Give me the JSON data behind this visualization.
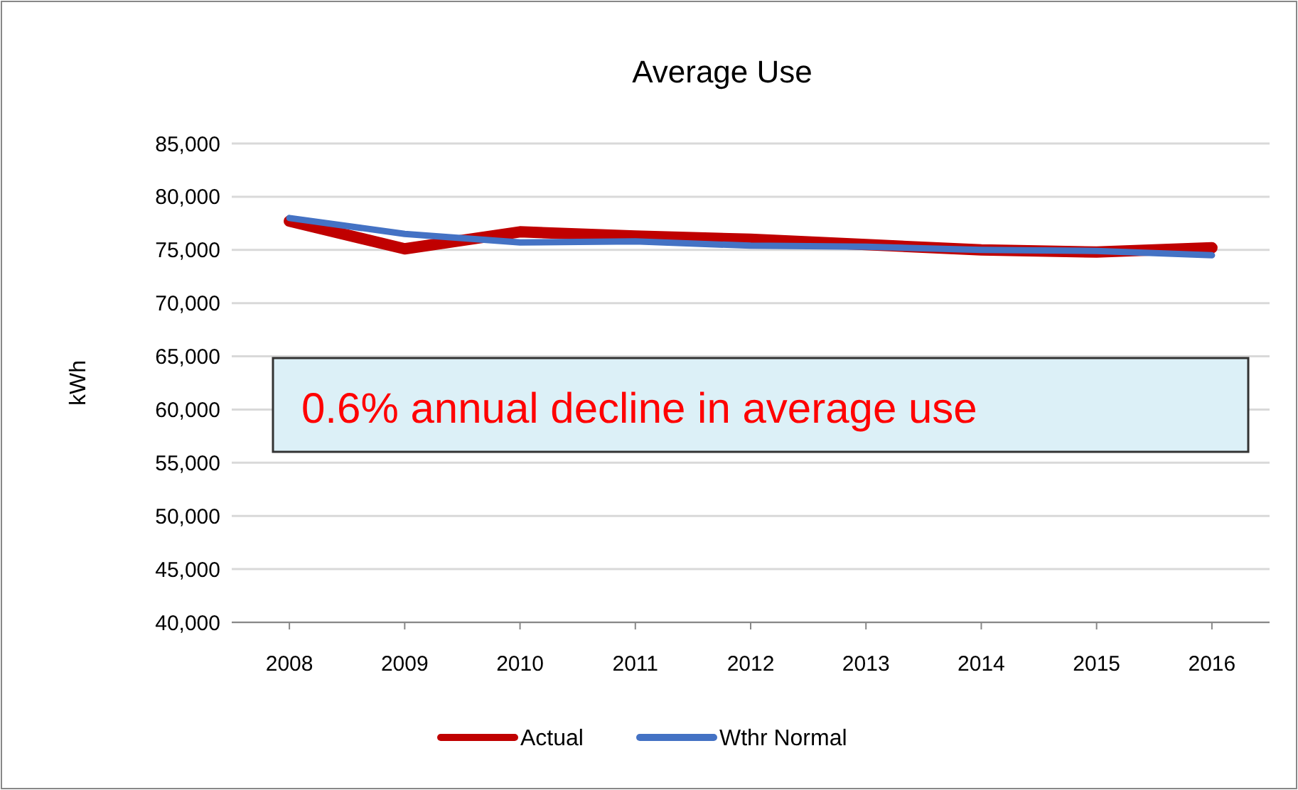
{
  "chart_data": {
    "type": "line",
    "title": "Average Use",
    "ylabel": "kWh",
    "categories": [
      "2008",
      "2009",
      "2010",
      "2011",
      "2012",
      "2013",
      "2014",
      "2015",
      "2016"
    ],
    "series": [
      {
        "name": "Actual",
        "color": "#c00000",
        "values": [
          77700,
          75100,
          76700,
          76300,
          76000,
          75500,
          75000,
          74800,
          75200
        ]
      },
      {
        "name": "Wthr Normal",
        "color": "#4472c4",
        "values": [
          78000,
          76500,
          75700,
          75800,
          75400,
          75300,
          75000,
          74900,
          74500
        ]
      }
    ],
    "ylim": [
      40000,
      85000
    ],
    "yticks": [
      {
        "value": 40000,
        "label": "40,000"
      },
      {
        "value": 45000,
        "label": "45,000"
      },
      {
        "value": 50000,
        "label": "50,000"
      },
      {
        "value": 55000,
        "label": "55,000"
      },
      {
        "value": 60000,
        "label": "60,000"
      },
      {
        "value": 65000,
        "label": "65,000"
      },
      {
        "value": 70000,
        "label": "70,000"
      },
      {
        "value": 75000,
        "label": "75,000"
      },
      {
        "value": 80000,
        "label": "80,000"
      },
      {
        "value": 85000,
        "label": "85,000"
      }
    ],
    "grid": "y",
    "legend": "bottom",
    "marker": "none",
    "line_style": "solid",
    "annotations": [
      "0.6% annual decline in average use"
    ]
  }
}
